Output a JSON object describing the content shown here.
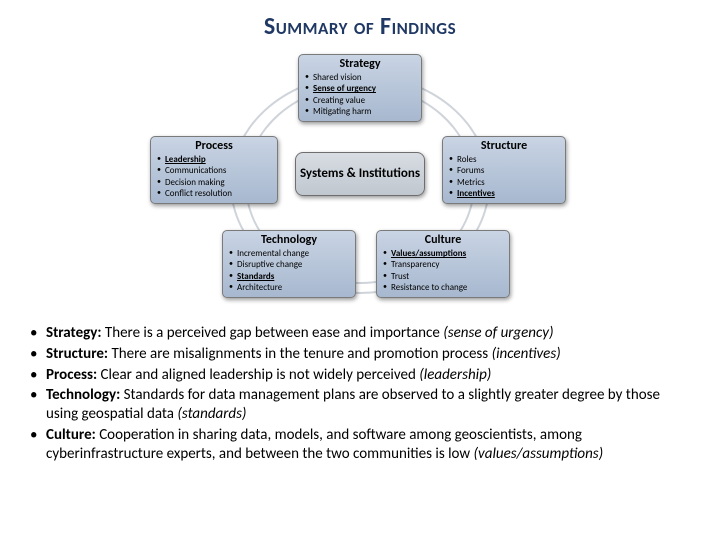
{
  "title": "Summary of Findings",
  "colors": {
    "title_color": "#203864",
    "box_gradient_top": "#c9d4e4",
    "box_gradient_bottom": "#a7b8cf",
    "box_border": "#7a7a7a",
    "center_gradient_top": "#d8dde3",
    "center_gradient_bottom": "#c0c7cf",
    "ring_color": "#cfd4da",
    "background": "#ffffff"
  },
  "diagram": {
    "center": "Systems & Institutions",
    "boxes": {
      "strategy": {
        "title": "Strategy",
        "items": [
          {
            "text": "Shared vision",
            "underline": false
          },
          {
            "text": "Sense of urgency",
            "underline": true
          },
          {
            "text": "Creating value",
            "underline": false
          },
          {
            "text": "Mitigating harm",
            "underline": false
          }
        ]
      },
      "process": {
        "title": "Process",
        "items": [
          {
            "text": "Leadership",
            "underline": true
          },
          {
            "text": "Communications",
            "underline": false
          },
          {
            "text": "Decision making",
            "underline": false
          },
          {
            "text": "Conflict resolution",
            "underline": false
          }
        ]
      },
      "structure": {
        "title": "Structure",
        "items": [
          {
            "text": "Roles",
            "underline": false
          },
          {
            "text": "Forums",
            "underline": false
          },
          {
            "text": "Metrics",
            "underline": false
          },
          {
            "text": "Incentives",
            "underline": true
          }
        ]
      },
      "technology": {
        "title": "Technology",
        "items": [
          {
            "text": "Incremental change",
            "underline": false
          },
          {
            "text": "Disruptive change",
            "underline": false
          },
          {
            "text": "Standards",
            "underline": true
          },
          {
            "text": "Architecture",
            "underline": false
          }
        ]
      },
      "culture": {
        "title": "Culture",
        "items": [
          {
            "text": "Values/assumptions",
            "underline": true
          },
          {
            "text": "Transparency",
            "underline": false
          },
          {
            "text": "Trust",
            "underline": false
          },
          {
            "text": "Resistance to change",
            "underline": false
          }
        ]
      }
    }
  },
  "findings": {
    "strategy": {
      "label": "Strategy:",
      "text": "There is a perceived gap between ease and importance",
      "emph": "(sense of urgency)"
    },
    "structure": {
      "label": "Structure:",
      "text": "There are misalignments in the tenure and promotion process",
      "emph": "(incentives)"
    },
    "process": {
      "label": "Process:",
      "text": "Clear and aligned leadership is not widely perceived",
      "emph": "(leadership)"
    },
    "technology": {
      "label": "Technology:",
      "text": "Standards for data management plans are observed to a slightly greater degree by those using geospatial data",
      "emph": "(standards)"
    },
    "culture": {
      "label": "Culture:",
      "text": "Cooperation in sharing data, models, and software among geoscientists, among cyberinfrastructure experts, and between the two communities is low",
      "emph": "(values/assumptions)"
    }
  }
}
